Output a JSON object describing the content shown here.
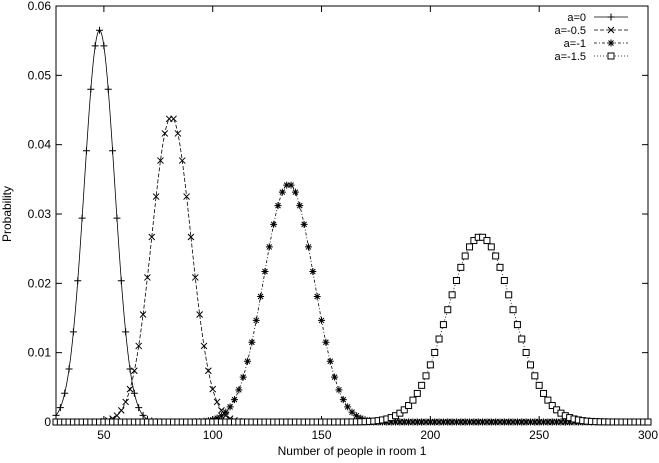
{
  "chart_data": {
    "type": "line",
    "title": "",
    "xlabel": "Number of people in room 1",
    "ylabel": "Probability",
    "xlim": [
      28,
      300
    ],
    "ylim": [
      0,
      0.06
    ],
    "xticks": [
      50,
      100,
      150,
      200,
      250,
      300
    ],
    "yticks": [
      0,
      0.01,
      0.02,
      0.03,
      0.04,
      0.05,
      0.06
    ],
    "xtick_labels": [
      "50",
      "100",
      "150",
      "200",
      "250",
      "300"
    ],
    "ytick_labels": [
      "0",
      "0.01",
      "0.02",
      "0.03",
      "0.04",
      "0.05",
      "0.06"
    ],
    "grid": false,
    "legend_position": "top-right",
    "series": [
      {
        "name": "a=0",
        "marker": "plus",
        "line_style": "solid",
        "peak_x": 48,
        "peak_y": 0.0565,
        "sigma": 7.0
      },
      {
        "name": "a=-0.5",
        "marker": "cross",
        "line_style": "dashed",
        "peak_x": 81,
        "peak_y": 0.044,
        "sigma": 9.0
      },
      {
        "name": "a=-1",
        "marker": "star",
        "line_style": "dash-dot",
        "peak_x": 135,
        "peak_y": 0.0343,
        "sigma": 11.5
      },
      {
        "name": "a=-1.5",
        "marker": "square",
        "line_style": "dotted",
        "peak_x": 223,
        "peak_y": 0.0267,
        "sigma": 15.0
      }
    ]
  }
}
